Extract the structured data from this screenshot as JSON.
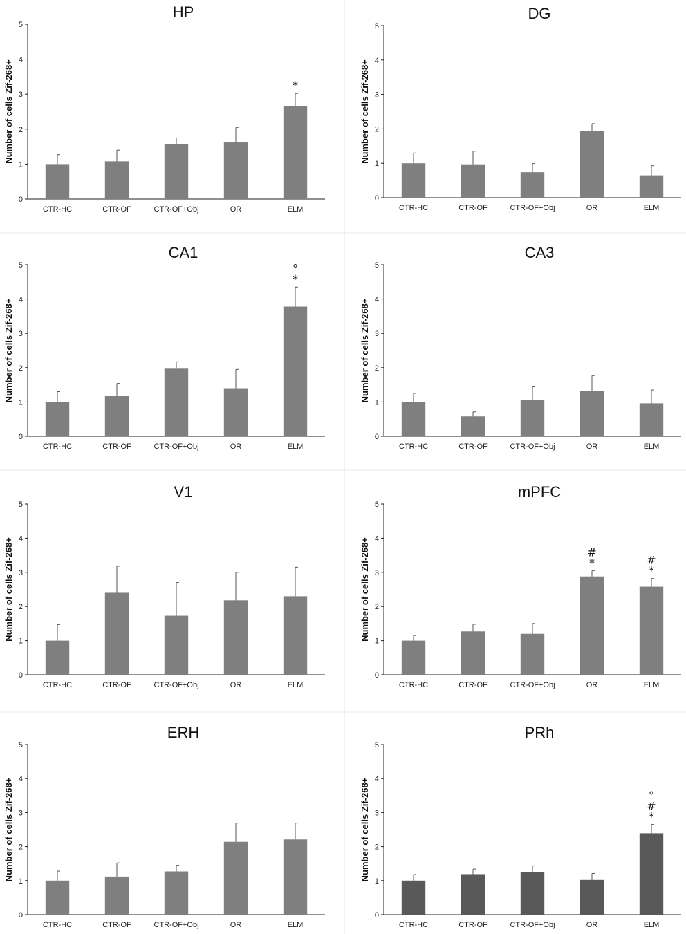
{
  "chart_data": [
    {
      "type": "bar",
      "title": "HP",
      "ylabel": "Number of cells Zif-268+",
      "xlabel": "",
      "categories": [
        "CTR-HC",
        "CTR-OF",
        "CTR-OF+Obj",
        "OR",
        "ELM"
      ],
      "values": [
        1.0,
        1.08,
        1.58,
        1.62,
        2.65
      ],
      "errors": [
        0.27,
        0.32,
        0.17,
        0.43,
        0.37
      ],
      "significance": [
        "",
        "",
        "",
        "",
        "*"
      ],
      "ylim": [
        0,
        5
      ],
      "yticks": [
        "0",
        "1",
        "2",
        "3",
        "4",
        "5"
      ],
      "bar_color": "#7f7f7f"
    },
    {
      "type": "bar",
      "title": "DG",
      "ylabel": "Number of cells Zif-268+",
      "xlabel": "",
      "categories": [
        "CTR-HC",
        "CTR-OF",
        "CTR-OF+Obj",
        "OR",
        "ELM"
      ],
      "values": [
        1.0,
        0.97,
        0.74,
        1.93,
        0.65
      ],
      "errors": [
        0.3,
        0.38,
        0.25,
        0.22,
        0.28
      ],
      "significance": [
        "",
        "",
        "",
        "",
        ""
      ],
      "ylim": [
        0,
        5
      ],
      "yticks": [
        "0",
        "1",
        "2",
        "3",
        "4",
        "5"
      ],
      "bar_color": "#7f7f7f"
    },
    {
      "type": "bar",
      "title": "CA1",
      "ylabel": "Number of cells Zif-268+",
      "xlabel": "",
      "categories": [
        "CTR-HC",
        "CTR-OF",
        "CTR-OF+Obj",
        "OR",
        "ELM"
      ],
      "values": [
        1.0,
        1.17,
        1.97,
        1.4,
        3.78
      ],
      "errors": [
        0.3,
        0.37,
        0.2,
        0.55,
        0.57
      ],
      "significance": [
        "",
        "",
        "",
        "",
        "°\n*"
      ],
      "ylim": [
        0,
        5
      ],
      "yticks": [
        "0",
        "1",
        "2",
        "3",
        "4",
        "5"
      ],
      "bar_color": "#7f7f7f"
    },
    {
      "type": "bar",
      "title": "CA3",
      "ylabel": "Number of cells Zif-268+",
      "xlabel": "",
      "categories": [
        "CTR-HC",
        "CTR-OF",
        "CTR-OF+Obj",
        "OR",
        "ELM"
      ],
      "values": [
        1.0,
        0.58,
        1.06,
        1.33,
        0.96
      ],
      "errors": [
        0.25,
        0.13,
        0.38,
        0.44,
        0.39
      ],
      "significance": [
        "",
        "",
        "",
        "",
        ""
      ],
      "ylim": [
        0,
        5
      ],
      "yticks": [
        "0",
        "1",
        "2",
        "3",
        "4",
        "5"
      ],
      "bar_color": "#7f7f7f"
    },
    {
      "type": "bar",
      "title": "V1",
      "ylabel": "Number of cells Zif-268+",
      "xlabel": "",
      "categories": [
        "CTR-HC",
        "CTR-OF",
        "CTR-OF+Obj",
        "OR",
        "ELM"
      ],
      "values": [
        1.0,
        2.4,
        1.73,
        2.18,
        2.3
      ],
      "errors": [
        0.47,
        0.78,
        0.97,
        0.82,
        0.85
      ],
      "significance": [
        "",
        "",
        "",
        "",
        ""
      ],
      "ylim": [
        0,
        5
      ],
      "yticks": [
        "0",
        "1",
        "2",
        "3",
        "4",
        "5"
      ],
      "bar_color": "#7f7f7f"
    },
    {
      "type": "bar",
      "title": "mPFC",
      "ylabel": "Number of cells Zif-268+",
      "xlabel": "",
      "categories": [
        "CTR-HC",
        "CTR-OF",
        "CTR-OF+Obj",
        "OR",
        "ELM"
      ],
      "values": [
        1.0,
        1.27,
        1.2,
        2.88,
        2.58
      ],
      "errors": [
        0.15,
        0.21,
        0.3,
        0.17,
        0.24
      ],
      "significance": [
        "",
        "",
        "",
        "#\n*",
        "#\n*"
      ],
      "ylim": [
        0,
        5
      ],
      "yticks": [
        "0",
        "1",
        "2",
        "3",
        "4",
        "5"
      ],
      "bar_color": "#7f7f7f"
    },
    {
      "type": "bar",
      "title": "ERH",
      "ylabel": "Number of cells Zif-268+",
      "xlabel": "",
      "categories": [
        "CTR-HC",
        "CTR-OF",
        "CTR-OF+Obj",
        "OR",
        "ELM"
      ],
      "values": [
        1.0,
        1.12,
        1.27,
        2.14,
        2.21
      ],
      "errors": [
        0.28,
        0.4,
        0.18,
        0.55,
        0.48
      ],
      "significance": [
        "",
        "",
        "",
        "",
        ""
      ],
      "ylim": [
        0,
        5
      ],
      "yticks": [
        "0",
        "1",
        "2",
        "3",
        "4",
        "5"
      ],
      "bar_color": "#7f7f7f"
    },
    {
      "type": "bar",
      "title": "PRh",
      "ylabel": "Number of cells Zif-268+",
      "xlabel": "",
      "categories": [
        "CTR-HC",
        "CTR-OF",
        "CTR-OF+Obj",
        "OR",
        "ELM"
      ],
      "values": [
        1.0,
        1.19,
        1.26,
        1.02,
        2.39
      ],
      "errors": [
        0.18,
        0.15,
        0.17,
        0.19,
        0.26
      ],
      "significance": [
        "",
        "",
        "",
        "",
        "°\n#\n*"
      ],
      "ylim": [
        0,
        5
      ],
      "yticks": [
        "0",
        "1",
        "2",
        "3",
        "4",
        "5"
      ],
      "bar_color": "#595959"
    }
  ]
}
